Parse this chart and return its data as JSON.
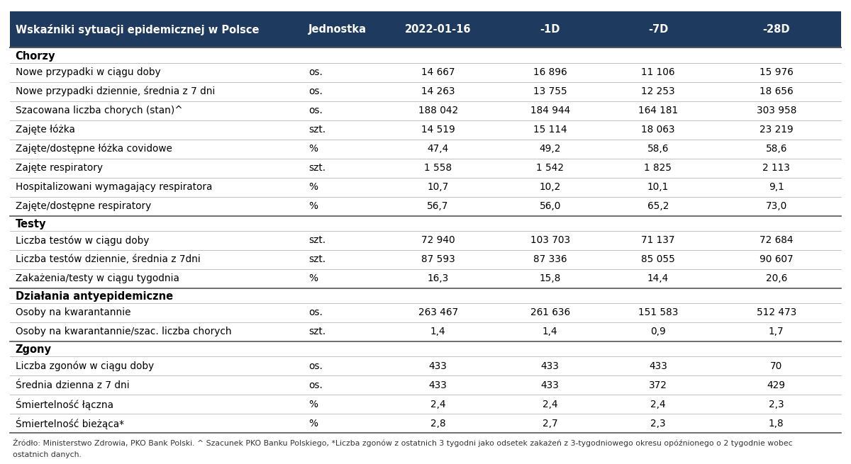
{
  "col_headers": [
    "Wskaźniki sytuacji epidemicznej w Polsce",
    "Jednostka",
    "2022-01-16",
    "-1D",
    "-7D",
    "-28D"
  ],
  "header_bg": "#1e3a5f",
  "header_fg": "#ffffff",
  "rows": [
    {
      "type": "section",
      "label": "Chorzy"
    },
    {
      "type": "data",
      "label": "Nowe przypadki w ciągu doby",
      "unit": "os.",
      "v1": "14 667",
      "v2": "16 896",
      "v3": "11 106",
      "v4": "15 976"
    },
    {
      "type": "data",
      "label": "Nowe przypadki dziennie, średnia z 7 dni",
      "unit": "os.",
      "v1": "14 263",
      "v2": "13 755",
      "v3": "12 253",
      "v4": "18 656"
    },
    {
      "type": "data",
      "label": "Szacowana liczba chorych (stan)^",
      "unit": "os.",
      "v1": "188 042",
      "v2": "184 944",
      "v3": "164 181",
      "v4": "303 958"
    },
    {
      "type": "data",
      "label": "Zajęte łóżka",
      "unit": "szt.",
      "v1": "14 519",
      "v2": "15 114",
      "v3": "18 063",
      "v4": "23 219"
    },
    {
      "type": "data",
      "label": "Zajęte/dostępne łóżka covidowe",
      "unit": "%",
      "v1": "47,4",
      "v2": "49,2",
      "v3": "58,6",
      "v4": "58,6"
    },
    {
      "type": "data",
      "label": "Zajęte respiratory",
      "unit": "szt.",
      "v1": "1 558",
      "v2": "1 542",
      "v3": "1 825",
      "v4": "2 113"
    },
    {
      "type": "data",
      "label": "Hospitalizowani wymagający respiratora",
      "unit": "%",
      "v1": "10,7",
      "v2": "10,2",
      "v3": "10,1",
      "v4": "9,1"
    },
    {
      "type": "data",
      "label": "Zajęte/dostępne respiratory",
      "unit": "%",
      "v1": "56,7",
      "v2": "56,0",
      "v3": "65,2",
      "v4": "73,0"
    },
    {
      "type": "section",
      "label": "Testy"
    },
    {
      "type": "data",
      "label": "Liczba testów w ciągu doby",
      "unit": "szt.",
      "v1": "72 940",
      "v2": "103 703",
      "v3": "71 137",
      "v4": "72 684"
    },
    {
      "type": "data",
      "label": "Liczba testów dziennie, średnia z 7dni",
      "unit": "szt.",
      "v1": "87 593",
      "v2": "87 336",
      "v3": "85 055",
      "v4": "90 607"
    },
    {
      "type": "data",
      "label": "Zakażenia/testy w ciągu tygodnia",
      "unit": "%",
      "v1": "16,3",
      "v2": "15,8",
      "v3": "14,4",
      "v4": "20,6"
    },
    {
      "type": "section",
      "label": "Działania antyepidemiczne"
    },
    {
      "type": "data",
      "label": "Osoby na kwarantannie",
      "unit": "os.",
      "v1": "263 467",
      "v2": "261 636",
      "v3": "151 583",
      "v4": "512 473"
    },
    {
      "type": "data",
      "label": "Osoby na kwarantannie/szac. liczba chorych",
      "unit": "szt.",
      "v1": "1,4",
      "v2": "1,4",
      "v3": "0,9",
      "v4": "1,7"
    },
    {
      "type": "section",
      "label": "Zgony"
    },
    {
      "type": "data",
      "label": "Liczba zgonów w ciągu doby",
      "unit": "os.",
      "v1": "433",
      "v2": "433",
      "v3": "433",
      "v4": "70"
    },
    {
      "type": "data",
      "label": "Średnia dzienna z 7 dni",
      "unit": "os.",
      "v1": "433",
      "v2": "433",
      "v3": "372",
      "v4": "429"
    },
    {
      "type": "data",
      "label": "Śmiertelność łączna",
      "unit": "%",
      "v1": "2,4",
      "v2": "2,4",
      "v3": "2,4",
      "v4": "2,3"
    },
    {
      "type": "data",
      "label": "Śmiertelność bieżąca*",
      "unit": "%",
      "v1": "2,8",
      "v2": "2,7",
      "v3": "2,3",
      "v4": "1,8"
    }
  ],
  "footnote_line1": "Źródło: Ministerstwo Zdrowia, PKO Bank Polski. ^ Szacunek PKO Banku Polskiego, *Liczba zgonów z ostatnich 3 tygodni jako odsetek zakażeń z 3-tygodniowego okresu opóźnionego o 2 tygodnie wobec",
  "footnote_line2": "ostatnich danych.",
  "bg_color": "#ffffff",
  "data_color": "#000000",
  "section_color": "#000000",
  "line_color_thin": "#aaaaaa",
  "line_color_thick": "#555555",
  "col_splits": [
    0.355,
    0.445,
    0.585,
    0.715,
    0.845,
    1.0
  ],
  "header_fontsize": 10.5,
  "data_fontsize": 9.8,
  "section_fontsize": 10.5,
  "footnote_fontsize": 7.8
}
